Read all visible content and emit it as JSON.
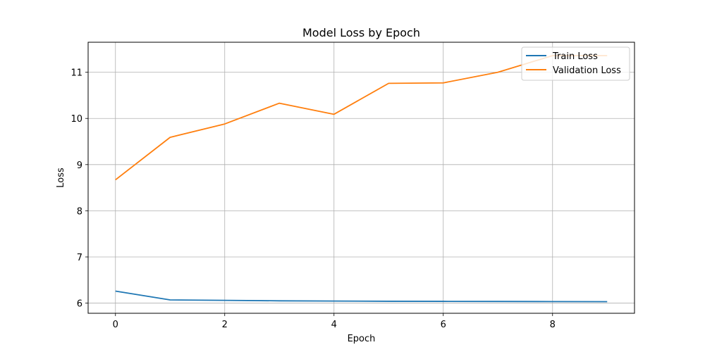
{
  "chart_data": {
    "type": "line",
    "title": "Model Loss by Epoch",
    "xlabel": "Epoch",
    "ylabel": "Loss",
    "x": [
      0,
      1,
      2,
      3,
      4,
      5,
      6,
      7,
      8,
      9
    ],
    "xlim": [
      -0.5,
      9.5
    ],
    "ylim": [
      5.78,
      11.65
    ],
    "xticks": [
      0,
      2,
      4,
      6,
      8
    ],
    "yticks": [
      6,
      7,
      8,
      9,
      10,
      11
    ],
    "grid": true,
    "legend_position": "top-right",
    "series": [
      {
        "name": "Train Loss",
        "color": "#1f77b4",
        "values": [
          6.26,
          6.07,
          6.06,
          6.05,
          6.045,
          6.04,
          6.038,
          6.036,
          6.034,
          6.032
        ]
      },
      {
        "name": "Validation Loss",
        "color": "#ff7f0e",
        "values": [
          8.67,
          9.59,
          9.88,
          10.33,
          10.09,
          10.76,
          10.77,
          11.0,
          11.36,
          11.36
        ]
      }
    ]
  }
}
